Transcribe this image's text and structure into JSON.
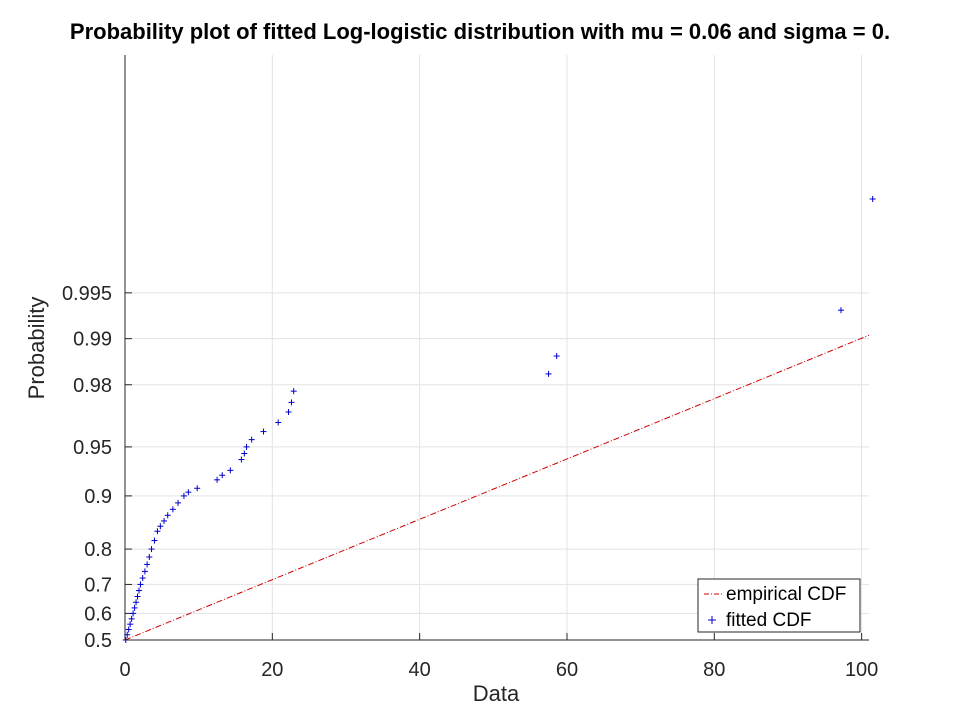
{
  "chart_data": {
    "type": "scatter",
    "title": "Probability plot of fitted Log-logistic distribution with mu = 0.06 and sigma = 0.",
    "xlabel": "Data",
    "ylabel": "Probability",
    "xlim": [
      0,
      101
    ],
    "x_ticks": [
      0,
      20,
      40,
      60,
      80,
      100
    ],
    "x_tick_labels": [
      "0",
      "20",
      "40",
      "60",
      "80",
      "100"
    ],
    "y_scale": "logistic-probability",
    "y_ticks": [
      0.995,
      0.99,
      0.98,
      0.95,
      0.9,
      0.8,
      0.7,
      0.6,
      0.5
    ],
    "y_tick_labels": [
      "0.995",
      "0.99",
      "0.98",
      "0.95",
      "0.9",
      "0.8",
      "0.7",
      "0.6",
      "0.5"
    ],
    "grid": true,
    "legend_position": "bottom-right",
    "series": [
      {
        "name": "empirical CDF",
        "style": "dash-dot-line",
        "color": "#cc0000",
        "x": [
          0,
          101
        ],
        "y": [
          0.5,
          0.9905
        ]
      },
      {
        "name": "fitted CDF",
        "style": "plus-markers",
        "color": "#0000cc",
        "x": [
          0.1,
          0.3,
          0.5,
          0.7,
          0.9,
          1.1,
          1.3,
          1.5,
          1.7,
          1.9,
          2.1,
          2.4,
          2.7,
          3.0,
          3.3,
          3.6,
          4.0,
          4.4,
          4.8,
          5.3,
          5.8,
          6.5,
          7.2,
          8.0,
          8.6,
          9.8,
          12.5,
          13.2,
          14.3,
          15.8,
          16.2,
          16.5,
          17.2,
          18.8,
          20.8,
          22.2,
          22.6,
          22.9,
          57.5,
          58.6,
          97.2,
          101.5
        ],
        "y": [
          0.5,
          0.52,
          0.54,
          0.56,
          0.58,
          0.6,
          0.62,
          0.64,
          0.66,
          0.68,
          0.7,
          0.72,
          0.74,
          0.76,
          0.78,
          0.8,
          0.82,
          0.84,
          0.85,
          0.86,
          0.87,
          0.88,
          0.89,
          0.9,
          0.905,
          0.91,
          0.92,
          0.925,
          0.93,
          0.94,
          0.945,
          0.95,
          0.955,
          0.96,
          0.965,
          0.97,
          0.974,
          0.978,
          0.983,
          0.987,
          0.9935,
          0.9988
        ]
      }
    ]
  }
}
